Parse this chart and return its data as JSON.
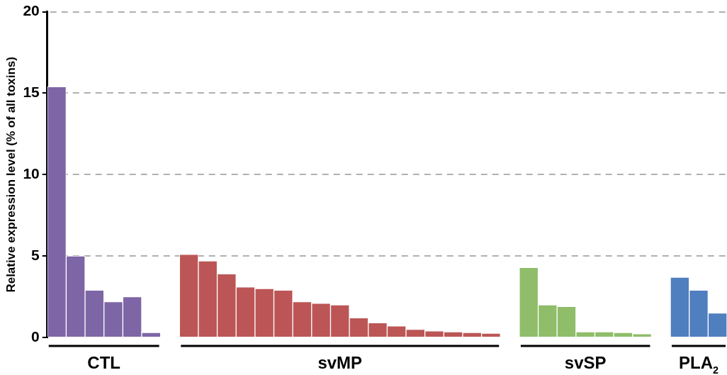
{
  "chart_data": {
    "type": "bar",
    "ylabel": "Relative expression level (% of all toxins)",
    "categories": [
      null,
      null,
      null,
      null,
      null,
      null,
      null,
      null,
      null,
      null,
      null,
      null,
      null,
      null,
      null,
      null,
      null,
      null,
      null,
      null,
      null,
      null,
      null,
      null,
      null,
      null,
      null,
      null,
      null,
      null,
      null,
      null,
      null,
      null,
      null,
      null
    ],
    "series": [
      {
        "name": "CTL",
        "color": "#7e66a6",
        "values": [
          15.4,
          5.0,
          2.9,
          2.2,
          2.5,
          0.3,
          null,
          null,
          null,
          null,
          null,
          null,
          null,
          null,
          null,
          null,
          null,
          null,
          null,
          null,
          null,
          null,
          null,
          null,
          null,
          null,
          null,
          null,
          null,
          null,
          null,
          null,
          null,
          null,
          null,
          null
        ]
      },
      {
        "name": "svMP",
        "color": "#bc5656",
        "values": [
          null,
          null,
          null,
          null,
          null,
          null,
          null,
          5.1,
          4.7,
          3.9,
          3.1,
          3.0,
          2.9,
          2.2,
          2.1,
          2.0,
          1.2,
          0.9,
          0.7,
          0.5,
          0.4,
          0.35,
          0.3,
          0.26,
          null,
          null,
          null,
          null,
          null,
          null,
          null,
          null,
          null,
          null,
          null,
          null
        ]
      },
      {
        "name": "svSP",
        "color": "#8fbd69",
        "values": [
          null,
          null,
          null,
          null,
          null,
          null,
          null,
          null,
          null,
          null,
          null,
          null,
          null,
          null,
          null,
          null,
          null,
          null,
          null,
          null,
          null,
          null,
          null,
          null,
          null,
          4.3,
          2.0,
          1.9,
          0.35,
          0.35,
          0.3,
          0.23,
          null,
          null,
          null,
          null
        ]
      },
      {
        "name": "PLA$_{2}$",
        "color": "#4f7fbe",
        "values": [
          null,
          null,
          null,
          null,
          null,
          null,
          null,
          null,
          null,
          null,
          null,
          null,
          null,
          null,
          null,
          null,
          null,
          null,
          null,
          null,
          null,
          null,
          null,
          null,
          null,
          null,
          null,
          null,
          null,
          null,
          null,
          null,
          null,
          3.7,
          2.9,
          1.5
        ]
      }
    ],
    "ylim": [
      0,
      20
    ],
    "yticks": [
      0,
      5,
      10,
      15,
      20
    ],
    "grid": "y",
    "legend": false
  }
}
